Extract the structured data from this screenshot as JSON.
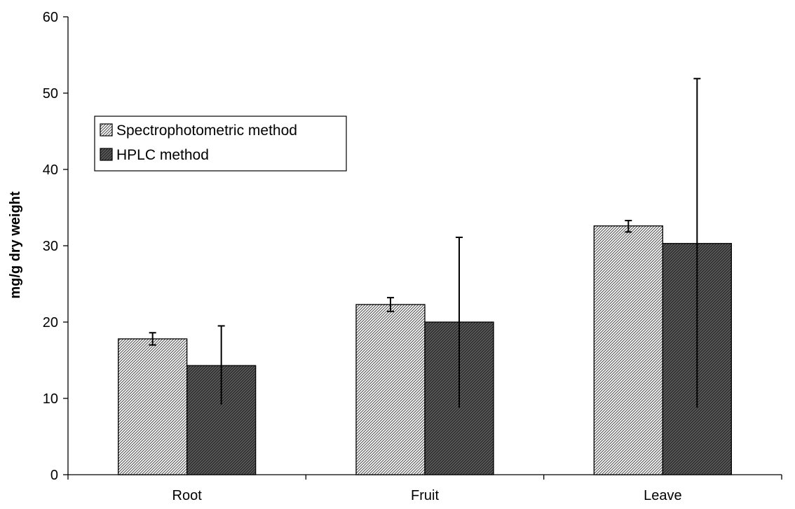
{
  "chart_data": {
    "type": "bar",
    "title": "",
    "xlabel": "",
    "ylabel": "mg/g dry weight",
    "ylim": [
      0,
      60
    ],
    "yticks": [
      0,
      10,
      20,
      30,
      40,
      50,
      60
    ],
    "categories": [
      "Root",
      "Fruit",
      "Leave"
    ],
    "series": [
      {
        "name": "Spectrophotometric method",
        "values": [
          17.8,
          22.3,
          32.6
        ],
        "error_low": [
          17.0,
          21.4,
          31.8
        ],
        "error_high": [
          18.6,
          23.2,
          33.3
        ],
        "pattern": "light-hatch"
      },
      {
        "name": "HPLC method",
        "values": [
          14.3,
          20.0,
          30.3
        ],
        "error_low": [
          9.2,
          8.8,
          8.8
        ],
        "error_high": [
          19.5,
          31.1,
          51.9
        ],
        "pattern": "dark-hatch"
      }
    ],
    "grid": false,
    "legend_position": "upper-left"
  }
}
